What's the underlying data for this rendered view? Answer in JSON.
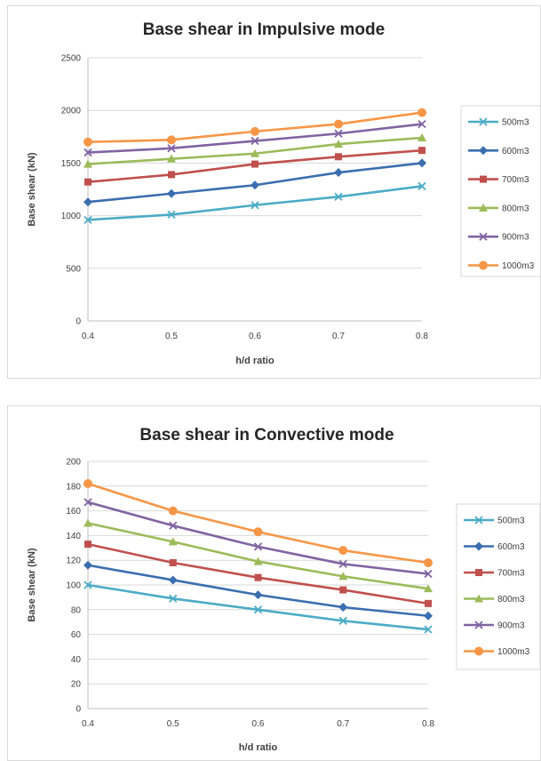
{
  "chart_data": [
    {
      "type": "line",
      "title": "Base shear in Impulsive mode",
      "xlabel": "h/d ratio",
      "ylabel": "Base shear (kN)",
      "x": [
        "0.4",
        "0.5",
        "0.6",
        "0.7",
        "0.8"
      ],
      "yticks": [
        "0",
        "500",
        "1000",
        "1500",
        "2000",
        "2500"
      ],
      "ylim": [
        0,
        2500
      ],
      "grid": true,
      "legend_position": "right",
      "series": [
        {
          "name": "500m3",
          "color": "#4bacc6",
          "marker": "x-mark",
          "values": [
            960,
            1010,
            1100,
            1180,
            1280
          ]
        },
        {
          "name": "600m3",
          "color": "#3b6eaf",
          "marker": "diamond",
          "values": [
            1130,
            1210,
            1290,
            1410,
            1500
          ]
        },
        {
          "name": "700m3",
          "color": "#c0504d",
          "marker": "square",
          "values": [
            1320,
            1390,
            1490,
            1560,
            1620
          ]
        },
        {
          "name": "800m3",
          "color": "#9bbb59",
          "marker": "triangle",
          "values": [
            1490,
            1540,
            1590,
            1680,
            1740
          ]
        },
        {
          "name": "900m3",
          "color": "#8064a2",
          "marker": "x-mark",
          "values": [
            1600,
            1640,
            1710,
            1780,
            1870
          ]
        },
        {
          "name": "1000m3",
          "color": "#f79646",
          "marker": "circle",
          "values": [
            1700,
            1720,
            1800,
            1870,
            1980
          ]
        }
      ]
    },
    {
      "type": "line",
      "title": "Base shear in Convective mode",
      "xlabel": "h/d ratio",
      "ylabel": "Base shear (kN)",
      "x": [
        "0.4",
        "0.5",
        "0.6",
        "0.7",
        "0.8"
      ],
      "yticks": [
        "0",
        "20",
        "40",
        "60",
        "80",
        "100",
        "120",
        "140",
        "160",
        "180",
        "200"
      ],
      "ylim": [
        0,
        200
      ],
      "grid": true,
      "legend_position": "right",
      "series": [
        {
          "name": "500m3",
          "color": "#4bacc6",
          "marker": "x-mark",
          "values": [
            100,
            89,
            80,
            71,
            64
          ]
        },
        {
          "name": "600m3",
          "color": "#3b6eaf",
          "marker": "diamond",
          "values": [
            116,
            104,
            92,
            82,
            75
          ]
        },
        {
          "name": "700m3",
          "color": "#c0504d",
          "marker": "square",
          "values": [
            133,
            118,
            106,
            96,
            85
          ]
        },
        {
          "name": "800m3",
          "color": "#9bbb59",
          "marker": "triangle",
          "values": [
            150,
            135,
            119,
            107,
            97
          ]
        },
        {
          "name": "900m3",
          "color": "#8064a2",
          "marker": "x-mark",
          "values": [
            167,
            148,
            131,
            117,
            109
          ]
        },
        {
          "name": "1000m3",
          "color": "#f79646",
          "marker": "circle",
          "values": [
            182,
            160,
            143,
            128,
            118
          ]
        }
      ]
    }
  ]
}
